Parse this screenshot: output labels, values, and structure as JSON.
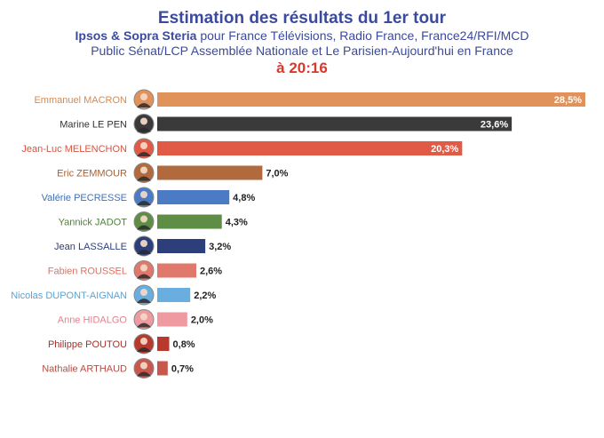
{
  "header": {
    "title": "Estimation des résultats du 1er tour",
    "subtitle_bold": "Ipsos & Sopra Steria",
    "subtitle_rest": " pour France Télévisions, Radio France, France24/RFI/MCD",
    "subtitle_line2": "Public Sénat/LCP Assemblée Nationale et Le Parisien-Aujourd'hui en France",
    "time": "à 20:16"
  },
  "chart_data": {
    "type": "bar",
    "orientation": "horizontal",
    "title": "Estimation des résultats du 1er tour",
    "xlim": [
      0,
      28.5
    ],
    "grid": false,
    "legend": "none",
    "categories": [
      "Emmanuel MACRON",
      "Marine LE PEN",
      "Jean-Luc MELENCHON",
      "Eric ZEMMOUR",
      "Valérie PECRESSE",
      "Yannick JADOT",
      "Jean LASSALLE",
      "Fabien ROUSSEL",
      "Nicolas DUPONT-AIGNAN",
      "Anne HIDALGO",
      "Philippe POUTOU",
      "Nathalie ARTHAUD"
    ],
    "values": [
      28.5,
      23.6,
      20.3,
      7.0,
      4.8,
      4.3,
      3.2,
      2.6,
      2.2,
      2.0,
      0.8,
      0.7
    ],
    "value_labels": [
      "28,5%",
      "23,6%",
      "20,3%",
      "7,0%",
      "4,8%",
      "4,3%",
      "3,2%",
      "2,6%",
      "2,2%",
      "2,0%",
      "0,8%",
      "0,7%"
    ],
    "colors": [
      "#e0925a",
      "#3a3a3a",
      "#e05a45",
      "#b06a3e",
      "#4a7bc4",
      "#5e8e46",
      "#2c3f7a",
      "#e0796b",
      "#6aaee0",
      "#ee9aa0",
      "#b8392e",
      "#c9574e"
    ],
    "label_colors": [
      "#d9894d",
      "#333333",
      "#d9533d",
      "#a66234",
      "#3f70b8",
      "#4f7f3a",
      "#2c3f7a",
      "#e07060",
      "#5aa3d8",
      "#e57f88",
      "#a8302a",
      "#c04a42"
    ],
    "value_label_inside": [
      true,
      true,
      true,
      false,
      false,
      false,
      false,
      false,
      false,
      false,
      false,
      false
    ]
  }
}
